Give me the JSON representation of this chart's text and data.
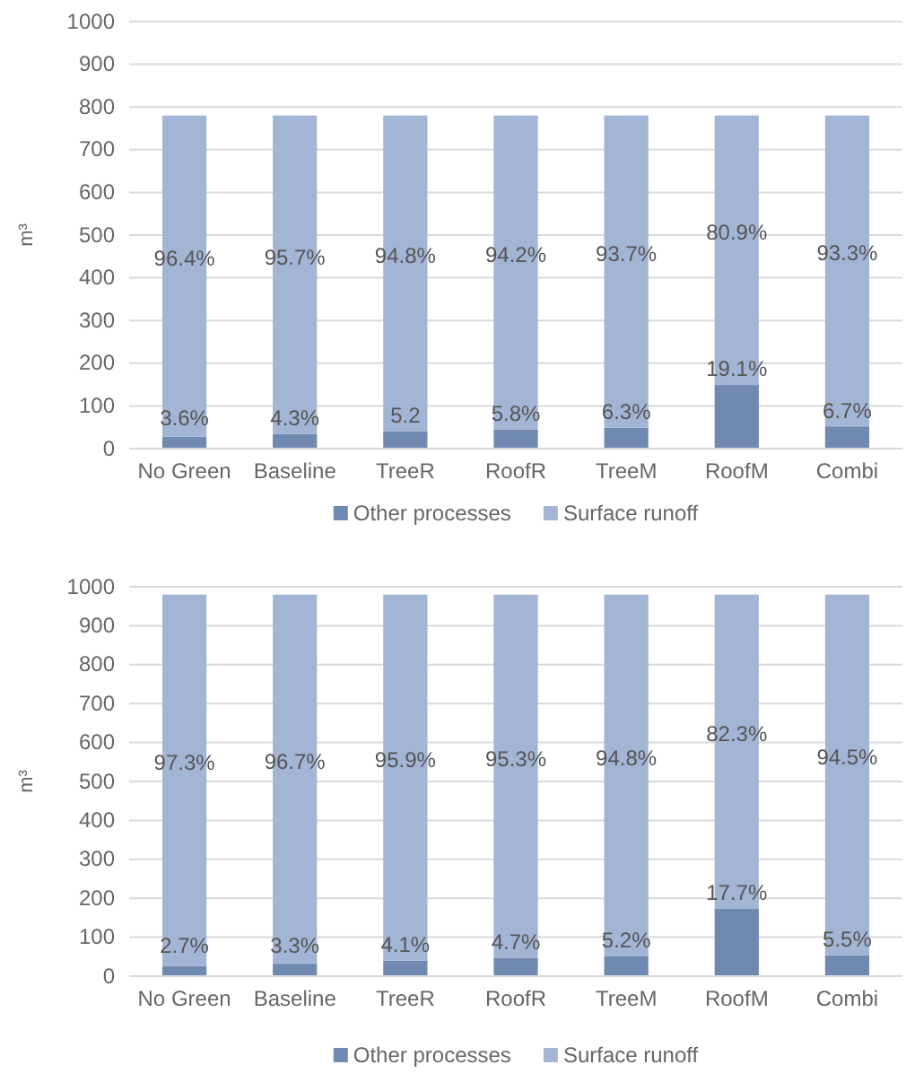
{
  "chart_data": [
    {
      "type": "bar",
      "stacked": true,
      "ylabel": "m³",
      "categories": [
        "No Green",
        "Baseline",
        "TreeR",
        "RoofR",
        "TreeM",
        "RoofM",
        "Combi"
      ],
      "ylim": [
        0,
        1000
      ],
      "yticks": [
        0,
        100,
        200,
        300,
        400,
        500,
        600,
        700,
        800,
        900,
        1000
      ],
      "grid": "y",
      "legend": "bottom",
      "series": [
        {
          "name": "Other processes",
          "color": "#7089b0",
          "values": [
            28,
            34,
            41,
            45,
            49,
            149,
            52
          ]
        },
        {
          "name": "Surface runoff",
          "color": "#a3b5d4",
          "values": [
            752,
            746,
            739,
            735,
            731,
            631,
            728
          ]
        }
      ],
      "annotations": [
        "3.6%",
        "4.3%",
        "5.2",
        "5.8%",
        "6.3%",
        "19.1%",
        "6.7%",
        "96.4%",
        "95.7%",
        "94.8%",
        "94.2%",
        "93.7%",
        "80.9%",
        "93.3%"
      ]
    },
    {
      "type": "bar",
      "stacked": true,
      "ylabel": "m³",
      "categories": [
        "No Green",
        "Baseline",
        "TreeR",
        "RoofR",
        "TreeM",
        "RoofM",
        "Combi"
      ],
      "ylim": [
        0,
        1000
      ],
      "yticks": [
        0,
        100,
        200,
        300,
        400,
        500,
        600,
        700,
        800,
        900,
        1000
      ],
      "grid": "y",
      "legend": "bottom",
      "series": [
        {
          "name": "Other processes",
          "color": "#7089b0",
          "values": [
            26,
            32,
            40,
            46,
            51,
            173,
            54
          ]
        },
        {
          "name": "Surface runoff",
          "color": "#a3b5d4",
          "values": [
            954,
            948,
            940,
            934,
            929,
            807,
            926
          ]
        }
      ],
      "annotations": [
        "2.7%",
        "3.3%",
        "4.1%",
        "4.7%",
        "5.2%",
        "17.7%",
        "5.5%",
        "97.3%",
        "96.7%",
        "95.9%",
        "95.3%",
        "94.8%",
        "82.3%",
        "94.5%"
      ]
    }
  ]
}
